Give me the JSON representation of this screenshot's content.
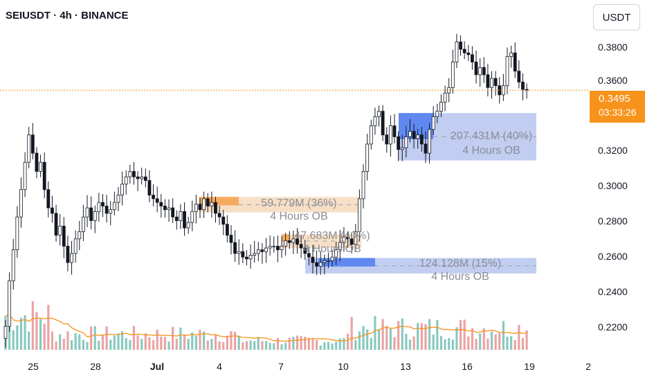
{
  "header": {
    "symbol_title": "SEIUSDT · 4h · BINANCE"
  },
  "price_axis": {
    "currency": "USDT",
    "ticks": [
      "0.3800",
      "0.3600",
      "0.3400",
      "0.3200",
      "0.3000",
      "0.2800",
      "0.2600",
      "0.2400",
      "0.2200"
    ],
    "current_price": "0.3495",
    "countdown": "03:33:26"
  },
  "time_axis": {
    "ticks": [
      "25",
      "28",
      "Jul",
      "4",
      "7",
      "10",
      "13",
      "16",
      "19",
      "2"
    ]
  },
  "colors": {
    "up": "#ffffff",
    "down": "#131722",
    "wick": "#131722",
    "vol_up": "#89c9c0",
    "vol_down": "#eba3a3",
    "volume_ma": "#f7931a",
    "price_line": "#f7931a",
    "ob_bull": "#8ea6e6",
    "ob_bull_core": "#4d7cf0",
    "ob_bear": "#f0c597",
    "ob_bear_core": "#f5a24e"
  },
  "chart_data": {
    "type": "candlestick",
    "title": "SEIUSDT · 4h · BINANCE",
    "ylim": [
      0.206,
      0.399
    ],
    "y_ticks": [
      0.38,
      0.36,
      0.34,
      0.32,
      0.3,
      0.28,
      0.26,
      0.24,
      0.22
    ],
    "x_ticks": [
      "25",
      "28",
      "Jul",
      "4",
      "7",
      "10",
      "13",
      "16",
      "19",
      "2"
    ],
    "current_price": 0.3495,
    "series_close": [
      0.22,
      0.245,
      0.262,
      0.28,
      0.295,
      0.31,
      0.325,
      0.315,
      0.305,
      0.31,
      0.295,
      0.285,
      0.282,
      0.27,
      0.275,
      0.264,
      0.255,
      0.26,
      0.268,
      0.272,
      0.28,
      0.285,
      0.278,
      0.283,
      0.288,
      0.286,
      0.282,
      0.284,
      0.288,
      0.292,
      0.298,
      0.302,
      0.305,
      0.302,
      0.301,
      0.302,
      0.3,
      0.292,
      0.29,
      0.288,
      0.286,
      0.284,
      0.285,
      0.28,
      0.278,
      0.283,
      0.274,
      0.277,
      0.283,
      0.287,
      0.284,
      0.29,
      0.286,
      0.288,
      0.282,
      0.28,
      0.276,
      0.27,
      0.266,
      0.26,
      0.261,
      0.258,
      0.257,
      0.259,
      0.26,
      0.262,
      0.261,
      0.263,
      0.264,
      0.264,
      0.262,
      0.264,
      0.267,
      0.266,
      0.268,
      0.265,
      0.263,
      0.26,
      0.258,
      0.255,
      0.253,
      0.255,
      0.256,
      0.256,
      0.258,
      0.262,
      0.266,
      0.269,
      0.268,
      0.265,
      0.272,
      0.29,
      0.305,
      0.32,
      0.33,
      0.335,
      0.338,
      0.325,
      0.32,
      0.33,
      0.324,
      0.317,
      0.318,
      0.324,
      0.327,
      0.323,
      0.325,
      0.32,
      0.315,
      0.328,
      0.335,
      0.338,
      0.343,
      0.348,
      0.351,
      0.365,
      0.376,
      0.372,
      0.37,
      0.369,
      0.365,
      0.358,
      0.362,
      0.358,
      0.351,
      0.356,
      0.352,
      0.347,
      0.352,
      0.368,
      0.37,
      0.36,
      0.354,
      0.35,
      0.3495
    ],
    "volume_note": "volume histogram with moving-average line",
    "order_blocks": [
      {
        "label": "207.431M (40%)",
        "sublabel": "4 Hours OB",
        "type": "bullish",
        "range": [
          0.311,
          0.337
        ]
      },
      {
        "label": "59.779M (36%)",
        "sublabel": "4 Hours OB",
        "type": "bearish",
        "range": [
          0.2825,
          0.291
        ]
      },
      {
        "label": "47.683M (40%)",
        "sublabel": "4 Hours OB",
        "type": "bearish",
        "range": [
          0.263,
          0.2705
        ]
      },
      {
        "label": "124.128M (15%)",
        "sublabel": "4 Hours OB",
        "type": "bullish",
        "range": [
          0.249,
          0.2575
        ]
      }
    ]
  }
}
